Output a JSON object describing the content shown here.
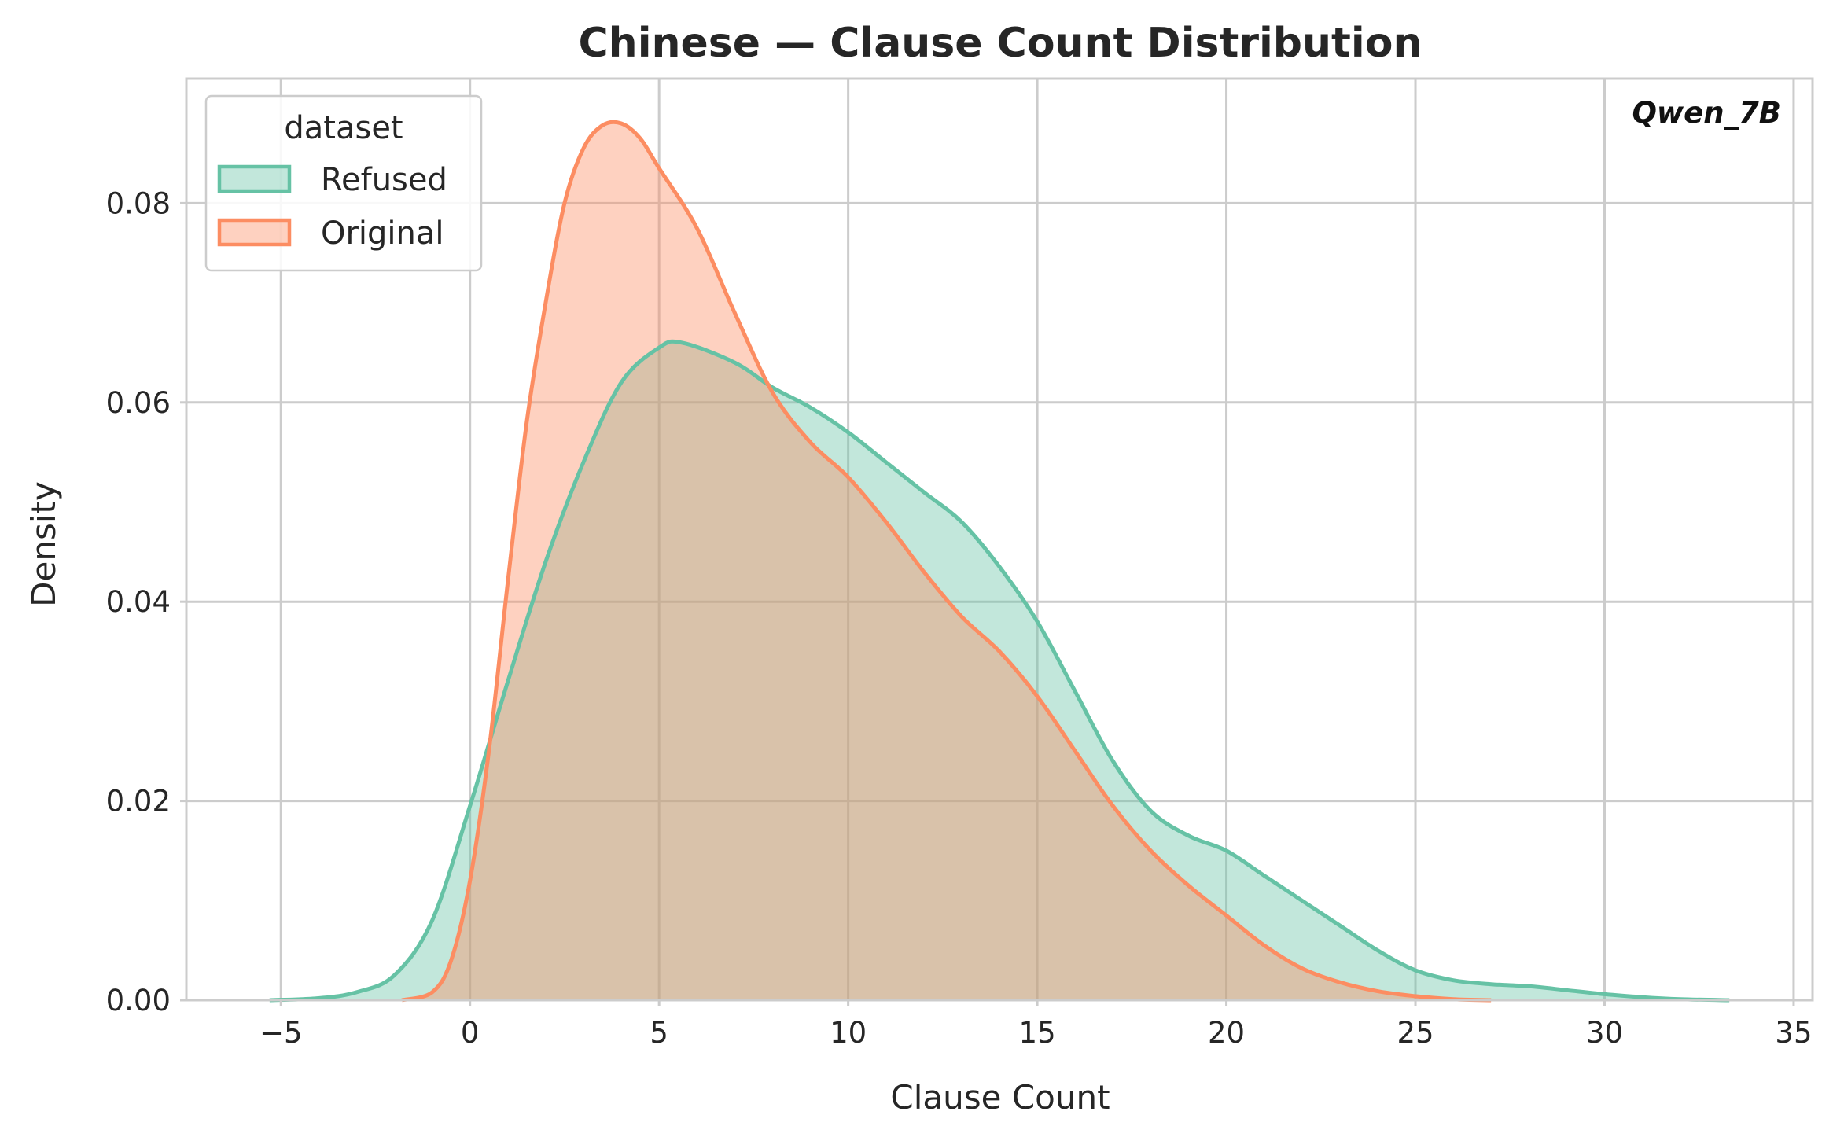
{
  "chart_data": {
    "type": "area",
    "title": "Chinese — Clause Count Distribution",
    "xlabel": "Clause Count",
    "ylabel": "Density",
    "xlim": [
      -7.5,
      35.5
    ],
    "ylim": [
      0,
      0.0925
    ],
    "x_ticks": [
      -5,
      0,
      5,
      10,
      15,
      20,
      25,
      30,
      35
    ],
    "x_tick_labels": [
      "−5",
      "0",
      "5",
      "10",
      "15",
      "20",
      "25",
      "30",
      "35"
    ],
    "y_ticks": [
      0,
      0.02,
      0.04,
      0.06,
      0.08
    ],
    "y_tick_labels": [
      "0.00",
      "0.02",
      "0.04",
      "0.06",
      "0.08"
    ],
    "grid": true,
    "annotation": "Qwen_7B",
    "legend": {
      "title": "dataset",
      "placement": "top-left"
    },
    "series": [
      {
        "name": "Refused",
        "color": "#66c2a5",
        "x": [
          -5.3,
          -4,
          -3,
          -2,
          -1,
          0,
          1,
          2,
          3,
          4,
          5,
          5.6,
          7,
          8,
          9,
          10,
          11,
          12,
          13,
          14,
          15,
          16,
          17,
          18,
          19,
          20,
          21,
          22,
          23,
          24,
          25,
          26,
          27,
          28,
          29,
          30,
          31,
          32,
          33.3
        ],
        "y": [
          0.0,
          0.0002,
          0.0008,
          0.0025,
          0.008,
          0.0195,
          0.032,
          0.044,
          0.054,
          0.062,
          0.0655,
          0.066,
          0.064,
          0.0615,
          0.0595,
          0.057,
          0.054,
          0.051,
          0.048,
          0.0435,
          0.038,
          0.031,
          0.024,
          0.019,
          0.0165,
          0.015,
          0.0125,
          0.01,
          0.0075,
          0.005,
          0.003,
          0.002,
          0.0016,
          0.0014,
          0.001,
          0.0006,
          0.0003,
          0.0001,
          0.0
        ]
      },
      {
        "name": "Original",
        "color": "#fc8d62",
        "x": [
          -1.8,
          -1,
          -0.5,
          0,
          0.5,
          1,
          1.5,
          2,
          2.5,
          3,
          3.5,
          4,
          4.5,
          5,
          6,
          7,
          8,
          9,
          10,
          11,
          12,
          13,
          14,
          15,
          16,
          17,
          18,
          19,
          20,
          21,
          22,
          23,
          24,
          25,
          26,
          27
        ],
        "y": [
          0.0,
          0.0008,
          0.004,
          0.012,
          0.025,
          0.042,
          0.058,
          0.07,
          0.08,
          0.0855,
          0.0878,
          0.088,
          0.0865,
          0.0835,
          0.0775,
          0.069,
          0.061,
          0.056,
          0.0525,
          0.048,
          0.043,
          0.0385,
          0.035,
          0.0305,
          0.025,
          0.0195,
          0.015,
          0.0115,
          0.0085,
          0.0055,
          0.0032,
          0.0018,
          0.0009,
          0.0004,
          0.0001,
          0.0
        ]
      }
    ]
  }
}
